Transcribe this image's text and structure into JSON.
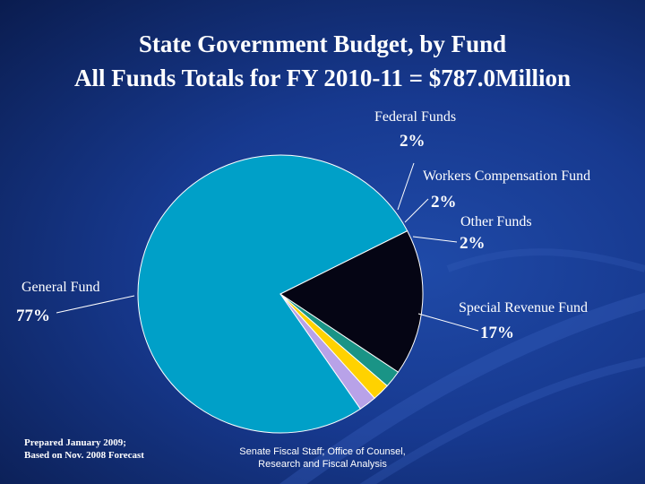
{
  "title_line1": "State Government Budget, by Fund",
  "title_line2": "All Funds Totals for FY 2010-11 = $787.0Million",
  "footer": {
    "prepared_line1": "Prepared January 2009;",
    "prepared_line2": "Based on Nov. 2008 Forecast",
    "source_line1": "Senate Fiscal Staff; Office of Counsel,",
    "source_line2": "Research and Fiscal Analysis"
  },
  "chart_data": {
    "type": "pie",
    "title": "State Government Budget, by Fund",
    "subtitle": "All Funds Totals for FY 2010-11 = $787.0Million",
    "slices": [
      {
        "name": "General Fund",
        "value": 77,
        "label": "77%",
        "color": "#00a0c8"
      },
      {
        "name": "Federal Funds",
        "value": 2,
        "label": "2%",
        "color": "#b8a2e8"
      },
      {
        "name": "Workers Compensation Fund",
        "value": 2,
        "label": "2%",
        "color": "#ffd200"
      },
      {
        "name": "Other Funds",
        "value": 2,
        "label": "2%",
        "color": "#1a9486"
      },
      {
        "name": "Special Revenue Fund",
        "value": 17,
        "label": "17%",
        "color": "#050514"
      }
    ]
  }
}
